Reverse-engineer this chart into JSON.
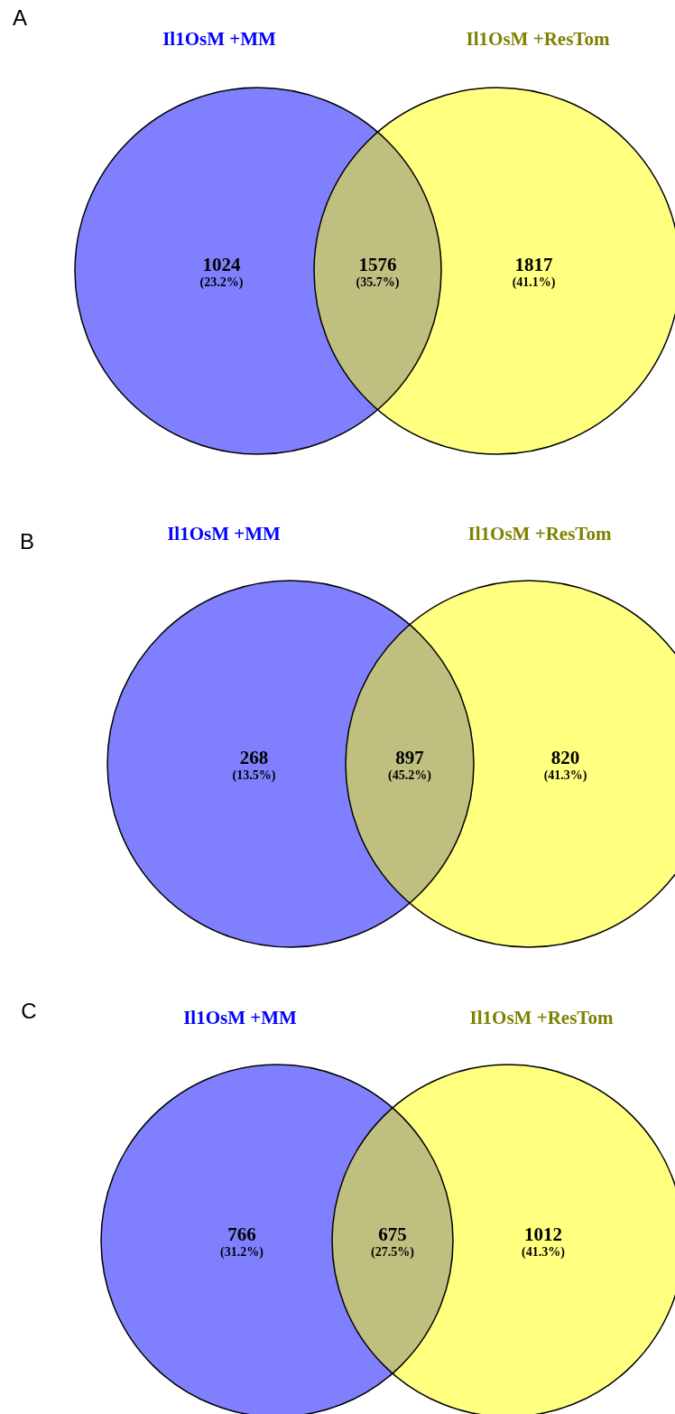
{
  "chart_data": [
    {
      "type": "other",
      "title": "A",
      "categories": [
        "Il1OsM +MM",
        null,
        "Il1OsM +ResTom"
      ],
      "values": [
        1024,
        1576,
        1817
      ],
      "data_labels": true,
      "annotations": [
        "(23.2%)",
        "(35.7%)",
        "(41.1%)"
      ],
      "colors": [
        "#8080ff",
        "#bfbf80",
        "#ffff80"
      ]
    },
    {
      "type": "other",
      "title": "B",
      "categories": [
        "Il1OsM +MM",
        null,
        "Il1OsM +ResTom"
      ],
      "values": [
        268,
        897,
        820
      ],
      "data_labels": true,
      "annotations": [
        "(13.5%)",
        "(45.2%)",
        "(41.3%)"
      ],
      "colors": [
        "#8080ff",
        "#bfbf80",
        "#ffff80"
      ]
    },
    {
      "type": "other",
      "title": "C",
      "categories": [
        "Il1OsM +MM",
        null,
        "Il1OsM +ResTom"
      ],
      "values": [
        766,
        675,
        1012
      ],
      "data_labels": true,
      "annotations": [
        "(31.2%)",
        "(27.5%)",
        "(41.3%)"
      ],
      "colors": [
        "#8080ff",
        "#bfbf80",
        "#ffff80"
      ]
    }
  ]
}
